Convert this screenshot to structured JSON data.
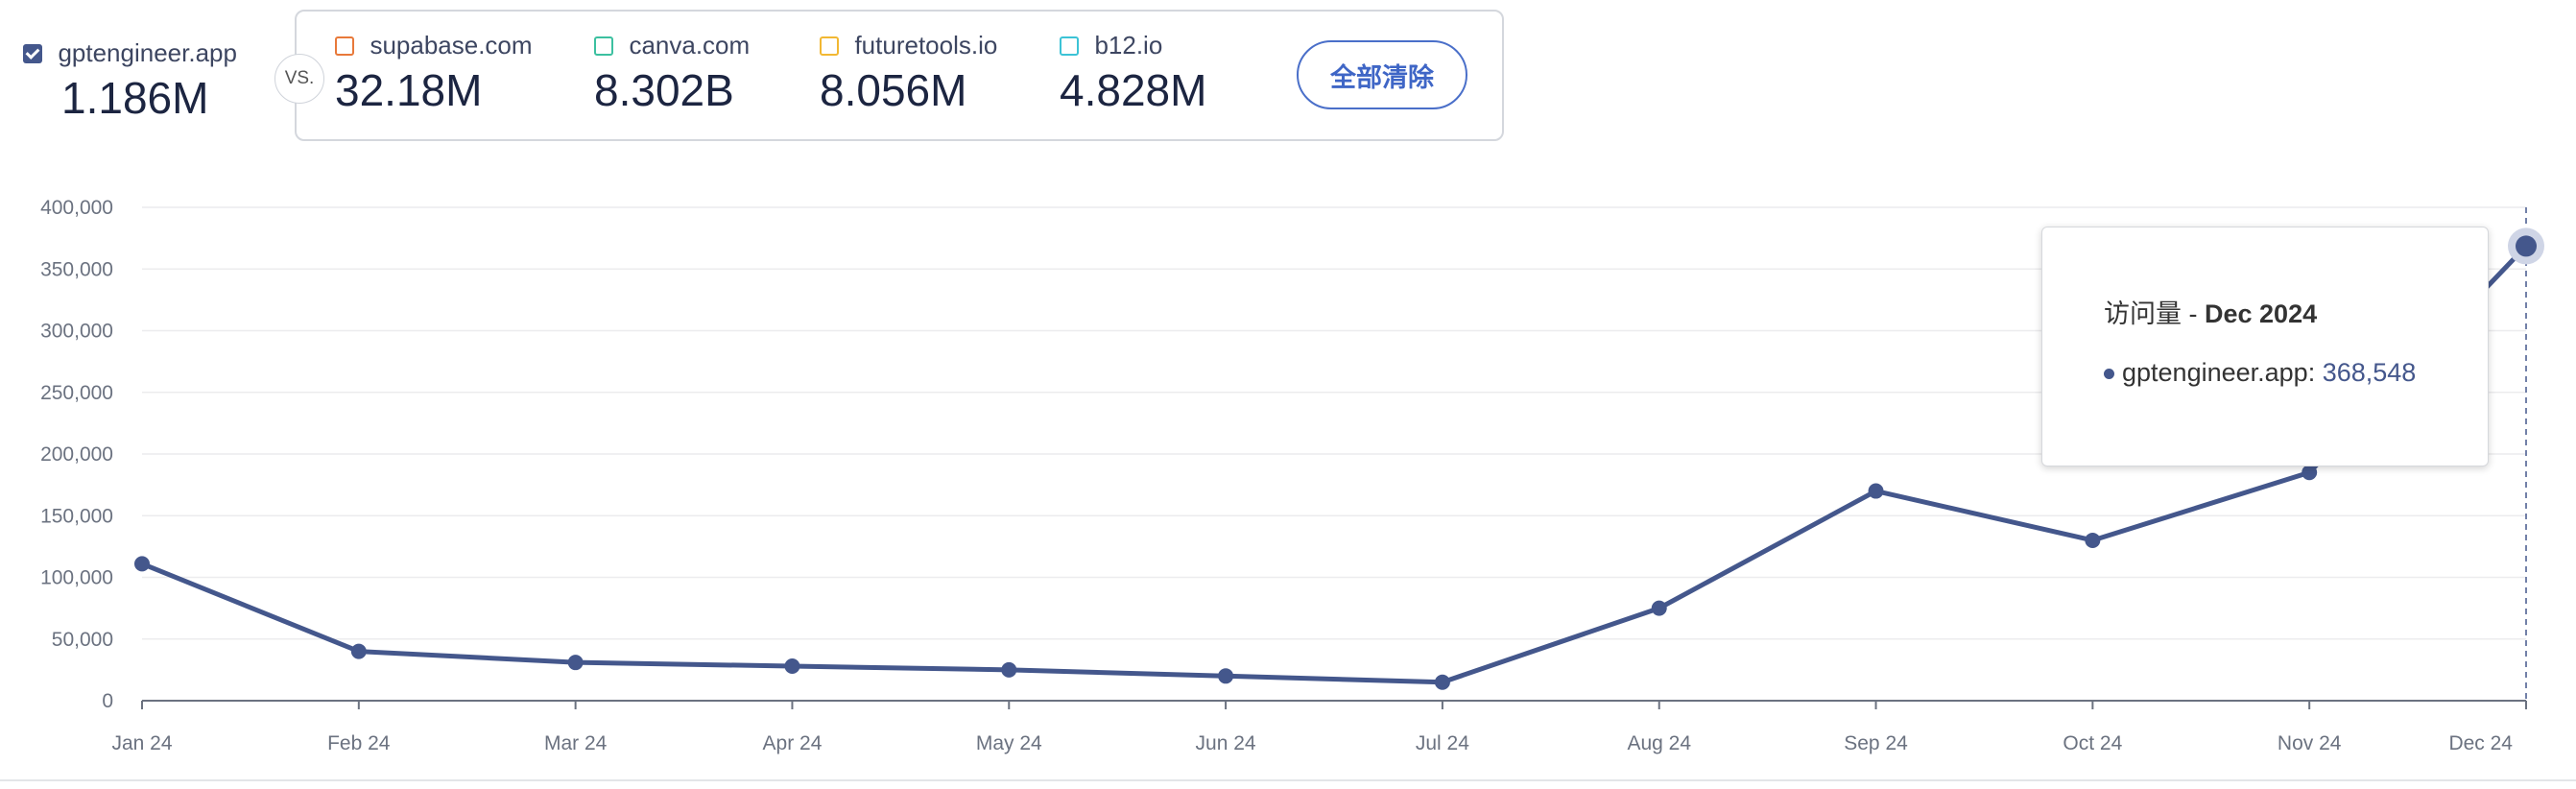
{
  "primary": {
    "site": "gptengineer.app",
    "value": "1.186M",
    "checked": true,
    "color": "#44578c"
  },
  "vs_label": "VS.",
  "comparisons": [
    {
      "site": "supabase.com",
      "value": "32.18M",
      "color": "#e8793a"
    },
    {
      "site": "canva.com",
      "value": "8.302B",
      "color": "#3cc0a0"
    },
    {
      "site": "futuretools.io",
      "value": "8.056M",
      "color": "#f2b833"
    },
    {
      "site": "b12.io",
      "value": "4.828M",
      "color": "#3cc3d6"
    }
  ],
  "clear_button": "全部清除",
  "tooltip": {
    "title_prefix": "访问量 - ",
    "month": "Dec 2024",
    "series": "gptengineer.app",
    "value": "368,548"
  },
  "chart_data": {
    "type": "line",
    "x": [
      "Jan 24",
      "Feb 24",
      "Mar 24",
      "Apr 24",
      "May 24",
      "Jun 24",
      "Jul 24",
      "Aug 24",
      "Sep 24",
      "Oct 24",
      "Nov 24",
      "Dec 24"
    ],
    "series": [
      {
        "name": "gptengineer.app",
        "color": "#44578c",
        "values": [
          111000,
          40000,
          31000,
          28000,
          25000,
          20000,
          15000,
          75000,
          170000,
          130000,
          185000,
          368548
        ]
      }
    ],
    "ylim": [
      0,
      400000
    ],
    "yticks": [
      0,
      50000,
      100000,
      150000,
      200000,
      250000,
      300000,
      350000,
      400000
    ],
    "ytick_labels": [
      "0",
      "50,000",
      "100,000",
      "150,000",
      "200,000",
      "250,000",
      "300,000",
      "350,000",
      "400,000"
    ],
    "grid": true,
    "highlight_index": 11
  }
}
